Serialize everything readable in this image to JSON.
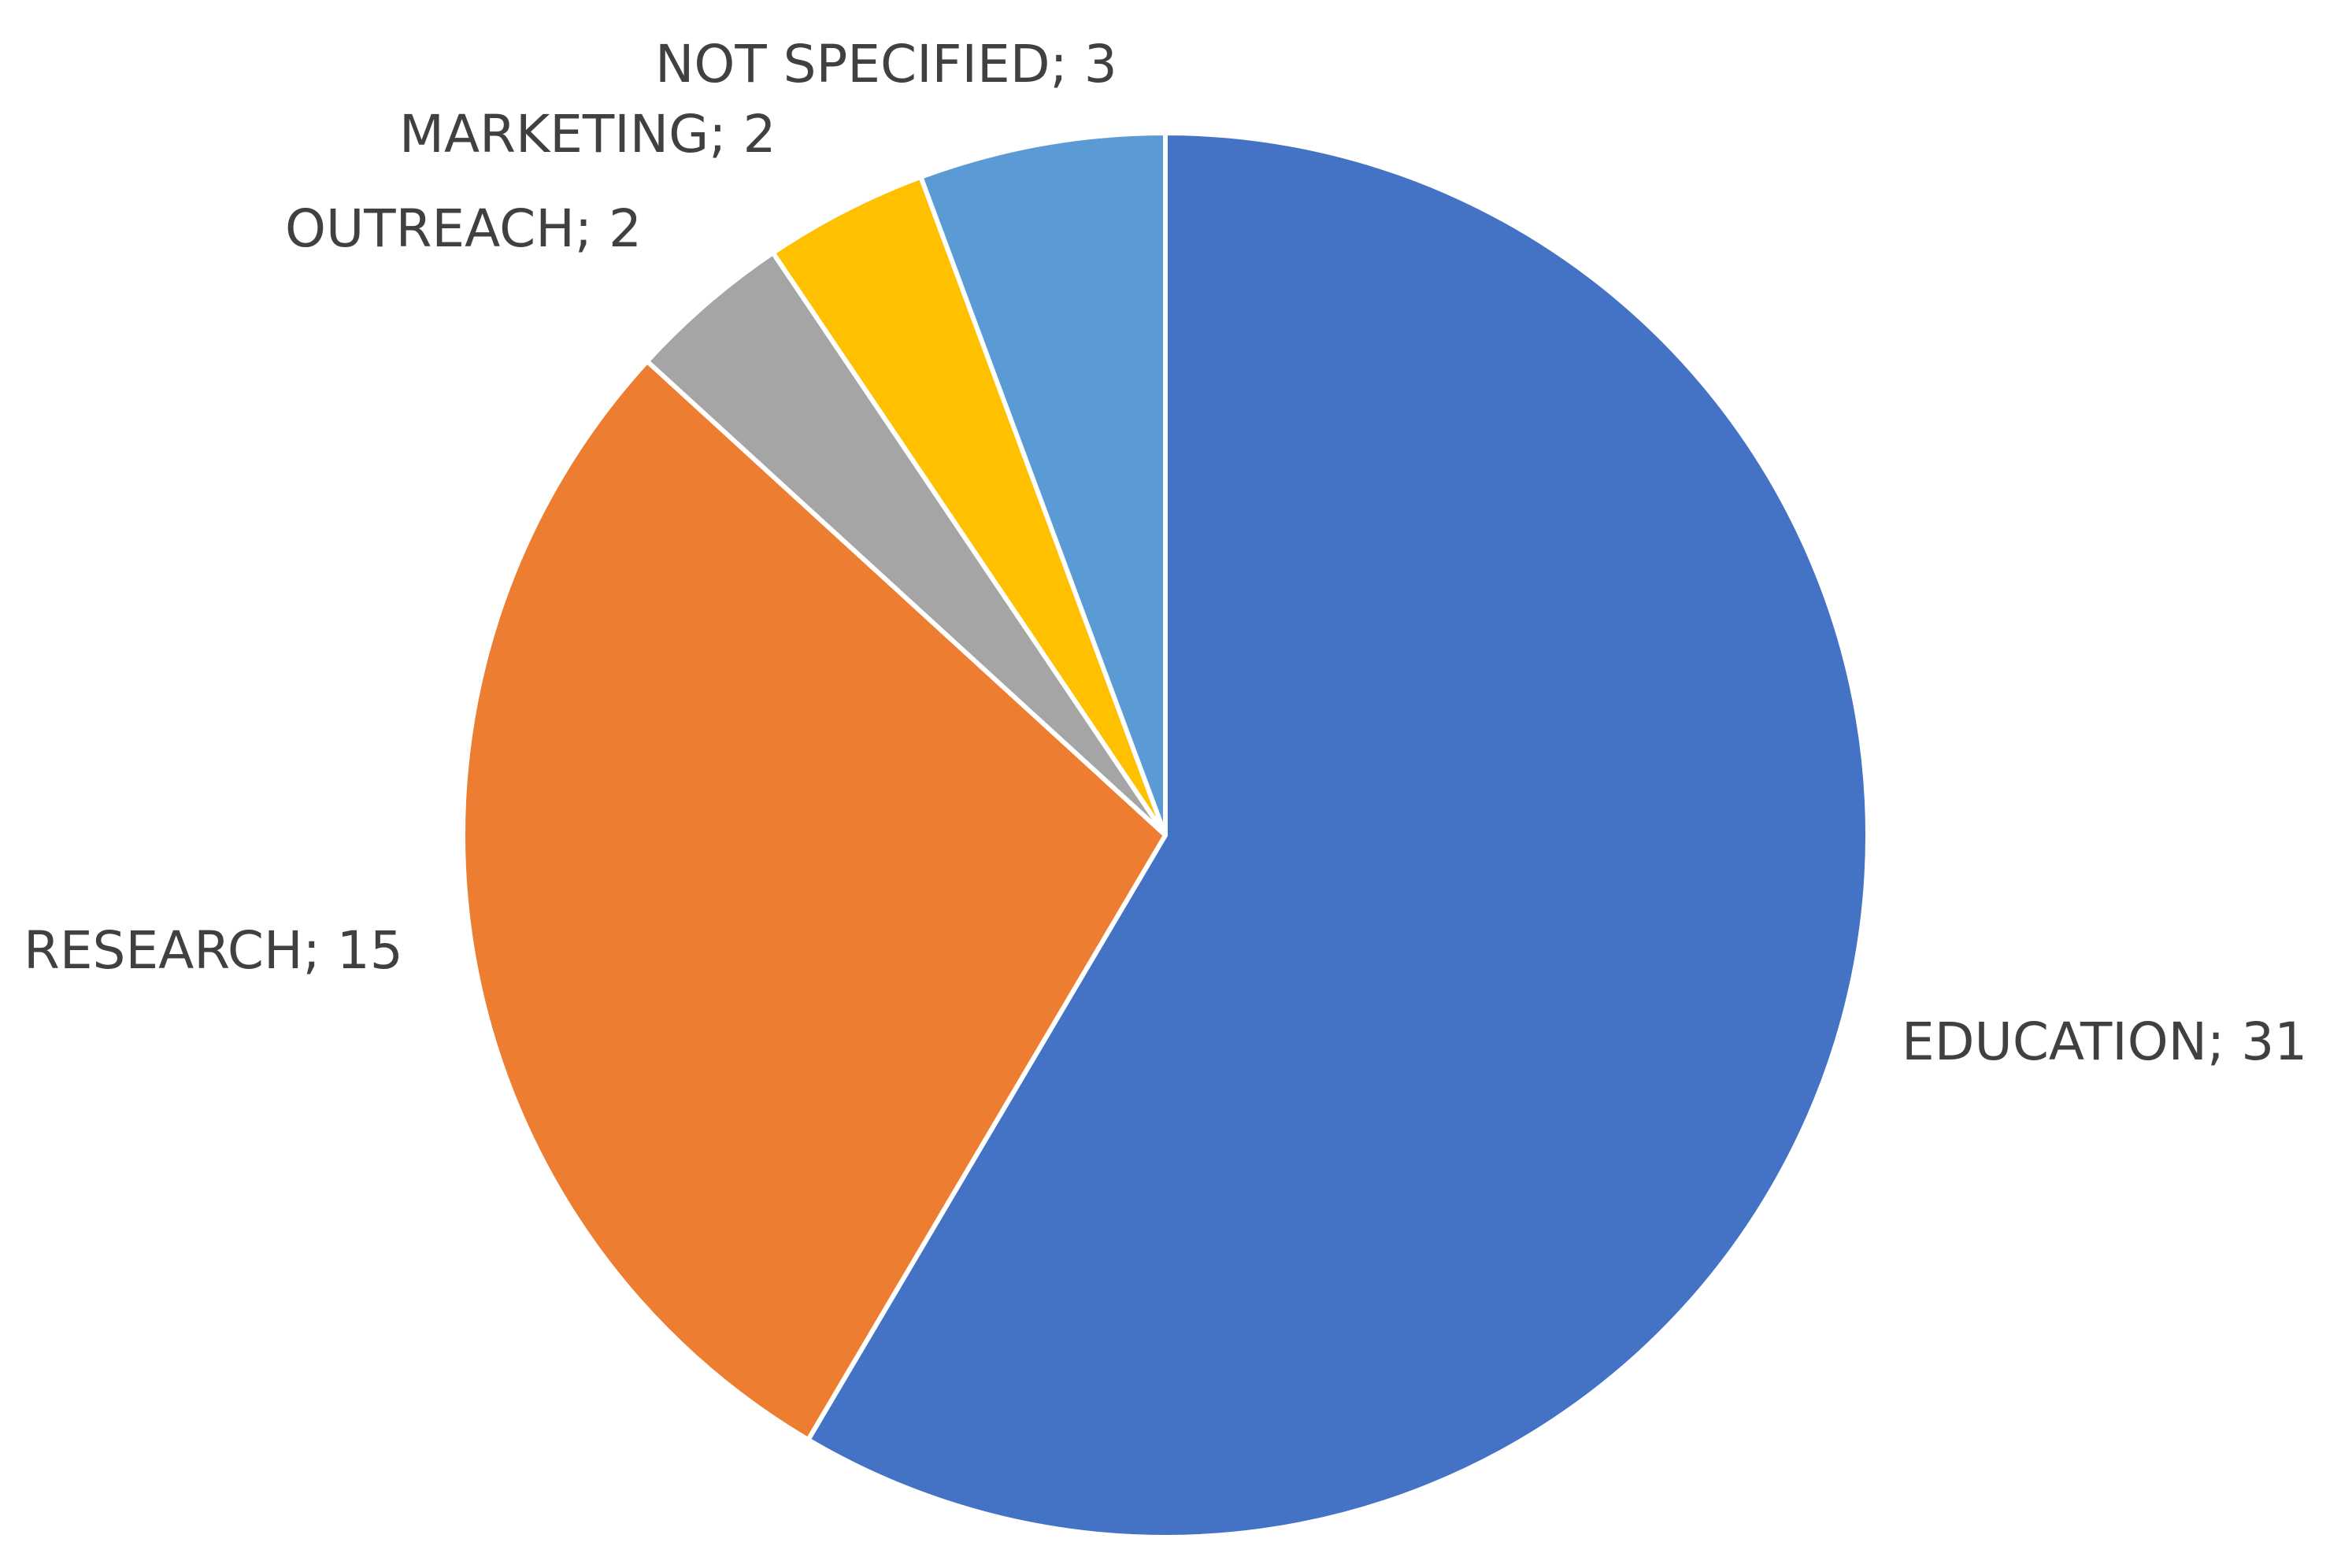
{
  "chart_data": {
    "type": "pie",
    "categories": [
      "EDUCATION",
      "RESEARCH",
      "OUTREACH",
      "MARKETING",
      "NOT SPECIFIED"
    ],
    "values": [
      31,
      15,
      2,
      2,
      3
    ],
    "value_labels": [
      "EDUCATION; 31",
      "RESEARCH; 15",
      "OUTREACH; 2",
      "MARKETING; 2",
      "NOT SPECIFIED; 3"
    ],
    "colors": [
      "#4472c4",
      "#ed7d31",
      "#a5a5a5",
      "#ffc000",
      "#5b9bd5"
    ]
  }
}
